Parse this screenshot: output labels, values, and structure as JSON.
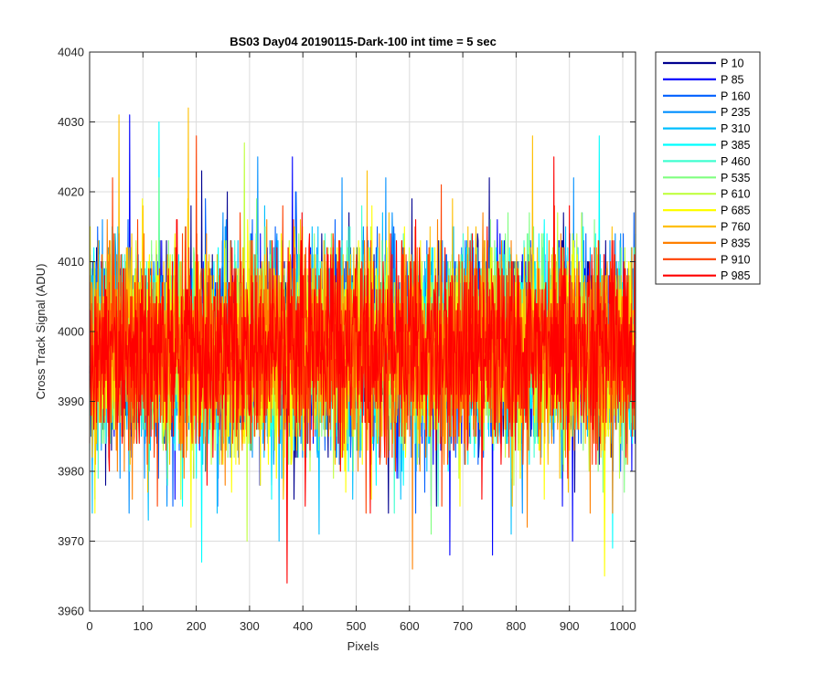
{
  "chart_data": {
    "type": "line",
    "title": "BS03 Day04 20190115-Dark-100 int time = 5 sec",
    "xlabel": "Pixels",
    "ylabel": "Cross Track Signal (ADU)",
    "xlim": [
      0,
      1024
    ],
    "ylim": [
      3960,
      4040
    ],
    "xticks": [
      0,
      100,
      200,
      300,
      400,
      500,
      600,
      700,
      800,
      900,
      1000
    ],
    "yticks": [
      3960,
      3970,
      3980,
      3990,
      4000,
      4010,
      4020,
      4030,
      4040
    ],
    "grid": true,
    "legend_position": "outside-top-right",
    "noise": {
      "mean": 3997.5,
      "std": 7,
      "samples_per_series": 1024
    },
    "series": [
      {
        "name": "P 10",
        "color": "#00008f",
        "peaks": [
          [
            210,
            4023
          ],
          [
            650,
            3975
          ]
        ]
      },
      {
        "name": "P 85",
        "color": "#0000ff",
        "peaks": [
          [
            75,
            4031
          ],
          [
            160,
            3976
          ],
          [
            380,
            4025
          ],
          [
            640,
            3975
          ],
          [
            675,
            3968
          ],
          [
            755,
            3968
          ],
          [
            905,
            3970
          ]
        ]
      },
      {
        "name": "P 160",
        "color": "#005fff",
        "peaks": [
          [
            15,
            4015
          ],
          [
            240,
            3975
          ]
        ]
      },
      {
        "name": "P 235",
        "color": "#008fff",
        "peaks": [
          [
            145,
            3975
          ],
          [
            315,
            4025
          ]
        ]
      },
      {
        "name": "P 310",
        "color": "#00bfff",
        "peaks": [
          [
            110,
            3973
          ],
          [
            355,
            3970
          ],
          [
            430,
            3971
          ],
          [
            790,
            3971
          ]
        ]
      },
      {
        "name": "P 385",
        "color": "#00ffff",
        "peaks": [
          [
            130,
            4030
          ],
          [
            210,
            3967
          ],
          [
            955,
            4028
          ],
          [
            980,
            3969
          ]
        ]
      },
      {
        "name": "P 460",
        "color": "#40ffd0",
        "peaks": [
          [
            510,
            4018
          ]
        ]
      },
      {
        "name": "P 535",
        "color": "#80ff80",
        "peaks": [
          [
            640,
            4035
          ],
          [
            640,
            3971
          ]
        ]
      },
      {
        "name": "P 610",
        "color": "#c0ff40",
        "peaks": [
          [
            290,
            4027
          ],
          [
            295,
            3970
          ]
        ]
      },
      {
        "name": "P 685",
        "color": "#ffff00",
        "peaks": [
          [
            10,
            3974
          ],
          [
            190,
            3972
          ],
          [
            965,
            3965
          ]
        ]
      },
      {
        "name": "P 760",
        "color": "#ffbf00",
        "peaks": [
          [
            55,
            4031
          ],
          [
            185,
            4032
          ],
          [
            520,
            4023
          ],
          [
            830,
            4028
          ]
        ]
      },
      {
        "name": "P 835",
        "color": "#ff8000",
        "peaks": [
          [
            80,
            3976
          ],
          [
            605,
            3966
          ],
          [
            820,
            3972
          ],
          [
            980,
            3974
          ]
        ]
      },
      {
        "name": "P 910",
        "color": "#ff4000",
        "peaks": [
          [
            200,
            4028
          ],
          [
            660,
            3975
          ]
        ]
      },
      {
        "name": "P 985",
        "color": "#ff0000",
        "peaks": [
          [
            370,
            3964
          ],
          [
            870,
            4025
          ],
          [
            735,
            3976
          ]
        ]
      }
    ]
  }
}
